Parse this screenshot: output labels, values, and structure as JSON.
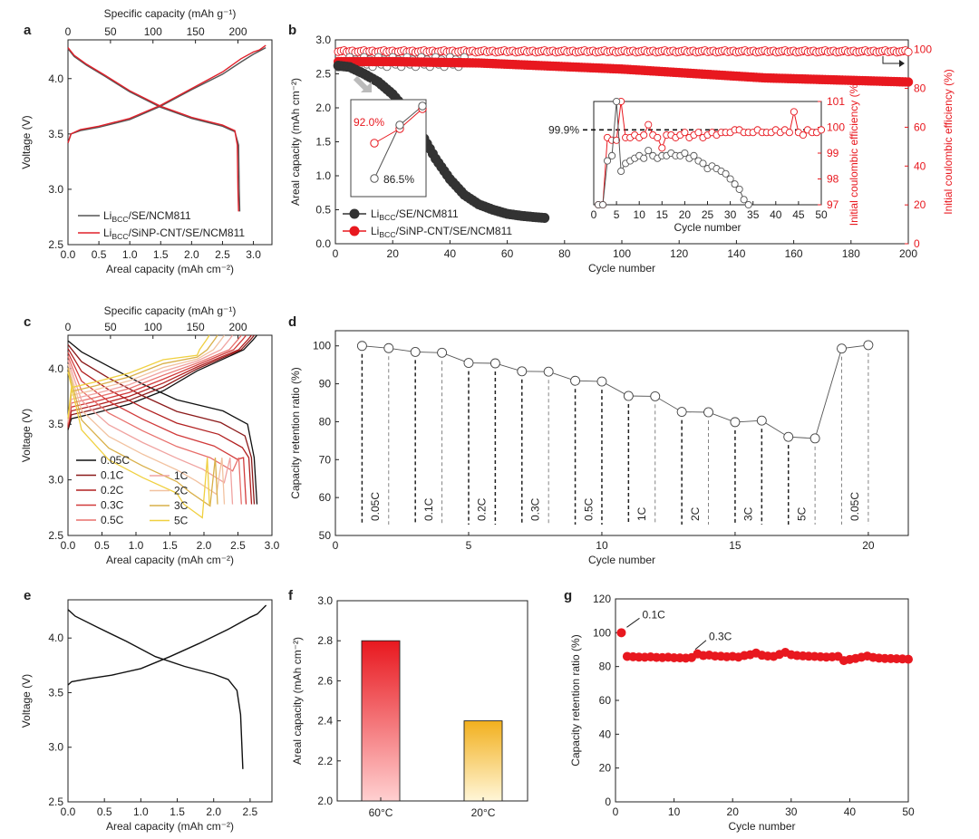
{
  "figure": {
    "panel_letters": [
      "a",
      "b",
      "c",
      "d",
      "e",
      "f",
      "g"
    ]
  },
  "chart_data": [
    {
      "panel": "a",
      "type": "line",
      "xlabel": "Areal capacity (mAh cm⁻²)",
      "x2label": "Specific capacity (mAh g⁻¹)",
      "ylabel": "Voltage (V)",
      "xlim": [
        0,
        3.3
      ],
      "ylim": [
        2.5,
        4.35
      ],
      "x2lim": [
        0,
        240
      ],
      "xticks": [
        "0.0",
        "0.5",
        "1.0",
        "1.5",
        "2.0",
        "2.5",
        "3.0"
      ],
      "x2ticks": [
        "0",
        "50",
        "100",
        "150",
        "200"
      ],
      "yticks": [
        "2.5",
        "3.0",
        "3.5",
        "4.0"
      ],
      "legend": [
        "Li<sub>BCC</sub>/SE/NCM811",
        "Li<sub>BCC</sub>/SiNP-CNT/SE/NCM811"
      ],
      "legend_text": [
        {
          "base": "Li",
          "sub": "BCC",
          "rest": "/SE/NCM811"
        },
        {
          "base": "Li",
          "sub": "BCC",
          "rest": "/SiNP-CNT/SE/NCM811"
        }
      ],
      "series": [
        {
          "name": "Li_BCC/SE/NCM811",
          "color": "#555555",
          "charge": [
            [
              0,
              3.42
            ],
            [
              0.05,
              3.5
            ],
            [
              0.2,
              3.53
            ],
            [
              0.5,
              3.56
            ],
            [
              1.0,
              3.63
            ],
            [
              1.5,
              3.75
            ],
            [
              2.0,
              3.9
            ],
            [
              2.5,
              4.04
            ],
            [
              2.8,
              4.15
            ],
            [
              3.0,
              4.22
            ],
            [
              3.1,
              4.25
            ],
            [
              3.2,
              4.28
            ]
          ],
          "discharge": [
            [
              0,
              4.27
            ],
            [
              0.1,
              4.2
            ],
            [
              0.3,
              4.12
            ],
            [
              0.6,
              4.02
            ],
            [
              1.0,
              3.88
            ],
            [
              1.5,
              3.74
            ],
            [
              2.0,
              3.64
            ],
            [
              2.5,
              3.57
            ],
            [
              2.7,
              3.52
            ],
            [
              2.76,
              3.4
            ],
            [
              2.77,
              3.0
            ],
            [
              2.78,
              2.8
            ]
          ]
        },
        {
          "name": "Li_BCC/SiNP-CNT/SE/NCM811",
          "color": "#e0202a",
          "charge": [
            [
              0,
              3.42
            ],
            [
              0.05,
              3.5
            ],
            [
              0.2,
              3.54
            ],
            [
              0.5,
              3.57
            ],
            [
              1.0,
              3.64
            ],
            [
              1.5,
              3.76
            ],
            [
              2.0,
              3.91
            ],
            [
              2.5,
              4.06
            ],
            [
              2.8,
              4.18
            ],
            [
              3.0,
              4.24
            ],
            [
              3.1,
              4.26
            ],
            [
              3.2,
              4.3
            ]
          ],
          "discharge": [
            [
              0,
              4.28
            ],
            [
              0.1,
              4.21
            ],
            [
              0.3,
              4.13
            ],
            [
              0.6,
              4.03
            ],
            [
              1.0,
              3.89
            ],
            [
              1.5,
              3.75
            ],
            [
              2.0,
              3.65
            ],
            [
              2.5,
              3.58
            ],
            [
              2.7,
              3.53
            ],
            [
              2.74,
              3.4
            ],
            [
              2.75,
              3.0
            ],
            [
              2.76,
              2.8
            ]
          ]
        }
      ]
    },
    {
      "panel": "b",
      "type": "scatter",
      "xlabel": "Cycle number",
      "ylabel": "Areal capacity (mAh cm⁻²)",
      "y2label": "Initial coulombic efficiency (%)",
      "xlim": [
        0,
        200
      ],
      "ylim": [
        0,
        3.0
      ],
      "y2lim": [
        0,
        105
      ],
      "xticks": [
        "0",
        "20",
        "40",
        "60",
        "80",
        "100",
        "120",
        "140",
        "160",
        "180",
        "200"
      ],
      "yticks": [
        "0.0",
        "0.5",
        "1.0",
        "1.5",
        "2.0",
        "2.5",
        "3.0"
      ],
      "y2ticks": [
        "0",
        "20",
        "40",
        "60",
        "80",
        "100"
      ],
      "legend_text": [
        {
          "base": "Li",
          "sub": "BCC",
          "rest": "/SE/NCM811"
        },
        {
          "base": "Li",
          "sub": "BCC",
          "rest": "/SiNP-CNT/SE/NCM811"
        }
      ],
      "series": [
        {
          "name": "Li_BCC/SE/NCM811",
          "color": "#333333",
          "capacity_knots": [
            [
              1,
              2.62
            ],
            [
              5,
              2.6
            ],
            [
              10,
              2.5
            ],
            [
              15,
              2.38
            ],
            [
              20,
              2.2
            ],
            [
              25,
              1.95
            ],
            [
              30,
              1.62
            ],
            [
              35,
              1.25
            ],
            [
              40,
              0.95
            ],
            [
              45,
              0.72
            ],
            [
              50,
              0.58
            ],
            [
              55,
              0.5
            ],
            [
              60,
              0.44
            ],
            [
              65,
              0.41
            ],
            [
              70,
              0.39
            ],
            [
              73,
              0.38
            ]
          ]
        },
        {
          "name": "Li_BCC/SiNP-CNT/SE/NCM811",
          "color": "#e8181f",
          "capacity_knots": [
            [
              1,
              2.68
            ],
            [
              20,
              2.68
            ],
            [
              50,
              2.66
            ],
            [
              100,
              2.57
            ],
            [
              150,
              2.44
            ],
            [
              200,
              2.38
            ]
          ]
        }
      ],
      "inset_zoom": {
        "labels": [
          "92.0%",
          "86.5%"
        ]
      },
      "inset_ce": {
        "label": "99.9%",
        "xlabel": "Cycle number",
        "y2label": "Initial coulombic efficiency (%)",
        "xlim": [
          0,
          50
        ],
        "ylim": [
          97,
          101
        ],
        "xticks": [
          "0",
          "5",
          "10",
          "15",
          "20",
          "25",
          "30",
          "35",
          "40",
          "45",
          "50"
        ],
        "yticks": [
          "97",
          "98",
          "99",
          "100",
          "101"
        ]
      }
    },
    {
      "panel": "c",
      "type": "line",
      "xlabel": "Areal capacity (mAh cm⁻²)",
      "x2label": "Specific capacity (mAh g⁻¹)",
      "ylabel": "Voltage (V)",
      "xlim": [
        0,
        3.0
      ],
      "ylim": [
        2.5,
        4.3
      ],
      "xticks": [
        "0.0",
        "0.5",
        "1.0",
        "1.5",
        "2.0",
        "2.5",
        "3.0"
      ],
      "x2ticks": [
        "0",
        "50",
        "100",
        "150",
        "200"
      ],
      "yticks": [
        "2.5",
        "3.0",
        "3.5",
        "4.0"
      ],
      "series": [
        {
          "name": "0.05C",
          "color": "#111111",
          "cap": 2.78
        },
        {
          "name": "0.1C",
          "color": "#8b1a1a",
          "cap": 2.74
        },
        {
          "name": "0.2C",
          "color": "#b22020",
          "cap": 2.7
        },
        {
          "name": "0.3C",
          "color": "#d13a3a",
          "cap": 2.62
        },
        {
          "name": "0.5C",
          "color": "#e8706c",
          "cap": 2.55
        },
        {
          "name": "1C",
          "color": "#f0a3a0",
          "cap": 2.42
        },
        {
          "name": "2C",
          "color": "#f2c2a0",
          "cap": 2.3
        },
        {
          "name": "3C",
          "color": "#d9b04a",
          "cap": 2.2
        },
        {
          "name": "5C",
          "color": "#f0d040",
          "cap": 2.08
        }
      ]
    },
    {
      "panel": "d",
      "type": "scatter",
      "xlabel": "Cycle number",
      "ylabel": "Capacity retention ratio (%)",
      "xlim": [
        0,
        21.5
      ],
      "ylim": [
        50,
        104
      ],
      "xticks": [
        "0",
        "5",
        "10",
        "15",
        "20"
      ],
      "yticks": [
        "50",
        "60",
        "70",
        "80",
        "90",
        "100"
      ],
      "x": [
        1,
        2,
        3,
        4,
        5,
        6,
        7,
        8,
        9,
        10,
        11,
        12,
        13,
        14,
        15,
        16,
        17,
        18,
        19,
        20
      ],
      "values": [
        100,
        99.4,
        98.4,
        98.2,
        95.5,
        95.4,
        93.3,
        93.2,
        90.8,
        90.6,
        86.8,
        86.7,
        82.6,
        82.5,
        79.9,
        80.3,
        76.0,
        75.6,
        99.3,
        100.2
      ],
      "rate_labels": [
        "0.05C",
        "0.1C",
        "0.2C",
        "0.3C",
        "0.5C",
        "1C",
        "2C",
        "3C",
        "5C",
        "0.05C"
      ]
    },
    {
      "panel": "e",
      "type": "line",
      "xlabel": "Areal capacity (mAh cm⁻²)",
      "ylabel": "Voltage (V)",
      "xlim": [
        0,
        2.8
      ],
      "ylim": [
        2.5,
        4.35
      ],
      "xticks": [
        "0.0",
        "0.5",
        "1.0",
        "1.5",
        "2.0",
        "2.5"
      ],
      "yticks": [
        "2.5",
        "3.0",
        "3.5",
        "4.0"
      ],
      "series": [
        {
          "name": "e",
          "color": "#111111",
          "charge": [
            [
              0,
              3.57
            ],
            [
              0.05,
              3.6
            ],
            [
              0.3,
              3.63
            ],
            [
              0.6,
              3.66
            ],
            [
              1.0,
              3.72
            ],
            [
              1.4,
              3.83
            ],
            [
              1.8,
              3.95
            ],
            [
              2.2,
              4.08
            ],
            [
              2.5,
              4.19
            ],
            [
              2.6,
              4.22
            ],
            [
              2.72,
              4.3
            ]
          ],
          "discharge": [
            [
              0,
              4.26
            ],
            [
              0.1,
              4.2
            ],
            [
              0.4,
              4.1
            ],
            [
              0.8,
              3.97
            ],
            [
              1.2,
              3.83
            ],
            [
              1.6,
              3.74
            ],
            [
              2.0,
              3.67
            ],
            [
              2.2,
              3.62
            ],
            [
              2.32,
              3.52
            ],
            [
              2.37,
              3.3
            ],
            [
              2.4,
              2.8
            ]
          ]
        }
      ]
    },
    {
      "panel": "f",
      "type": "bar",
      "ylabel": "Areal capacity (mAh cm⁻²)",
      "ylim": [
        2.0,
        3.0
      ],
      "yticks": [
        "2.0",
        "2.2",
        "2.4",
        "2.6",
        "2.8",
        "3.0"
      ],
      "categories": [
        "60°C",
        "20°C"
      ],
      "values": [
        2.8,
        2.4
      ],
      "colors": [
        "#e8181f",
        "#f2b01e"
      ]
    },
    {
      "panel": "g",
      "type": "scatter",
      "xlabel": "Cycle number",
      "ylabel": "Capacity retention ratio (%)",
      "xlim": [
        0,
        50
      ],
      "ylim": [
        0,
        120
      ],
      "xticks": [
        "0",
        "10",
        "20",
        "30",
        "40",
        "50"
      ],
      "yticks": [
        "0",
        "20",
        "40",
        "60",
        "80",
        "100",
        "120"
      ],
      "annotations": [
        "0.1C",
        "0.3C"
      ],
      "color": "#e8181f",
      "values": [
        100,
        86,
        85.8,
        85.6,
        85.5,
        85.7,
        85.4,
        85.3,
        85.5,
        85.2,
        85.1,
        85,
        85.3,
        87.5,
        86.5,
        86.8,
        86.2,
        86.1,
        85.8,
        86,
        85.6,
        86.5,
        87,
        88,
        86.7,
        86.2,
        86,
        87.2,
        88.4,
        87,
        86.5,
        86.3,
        86.1,
        86,
        85.8,
        85.6,
        85.7,
        86,
        83.5,
        84.2,
        84.8,
        85.5,
        86.2,
        85.4,
        85,
        84.8,
        84.7,
        84.6,
        84.5,
        84.3
      ]
    }
  ]
}
